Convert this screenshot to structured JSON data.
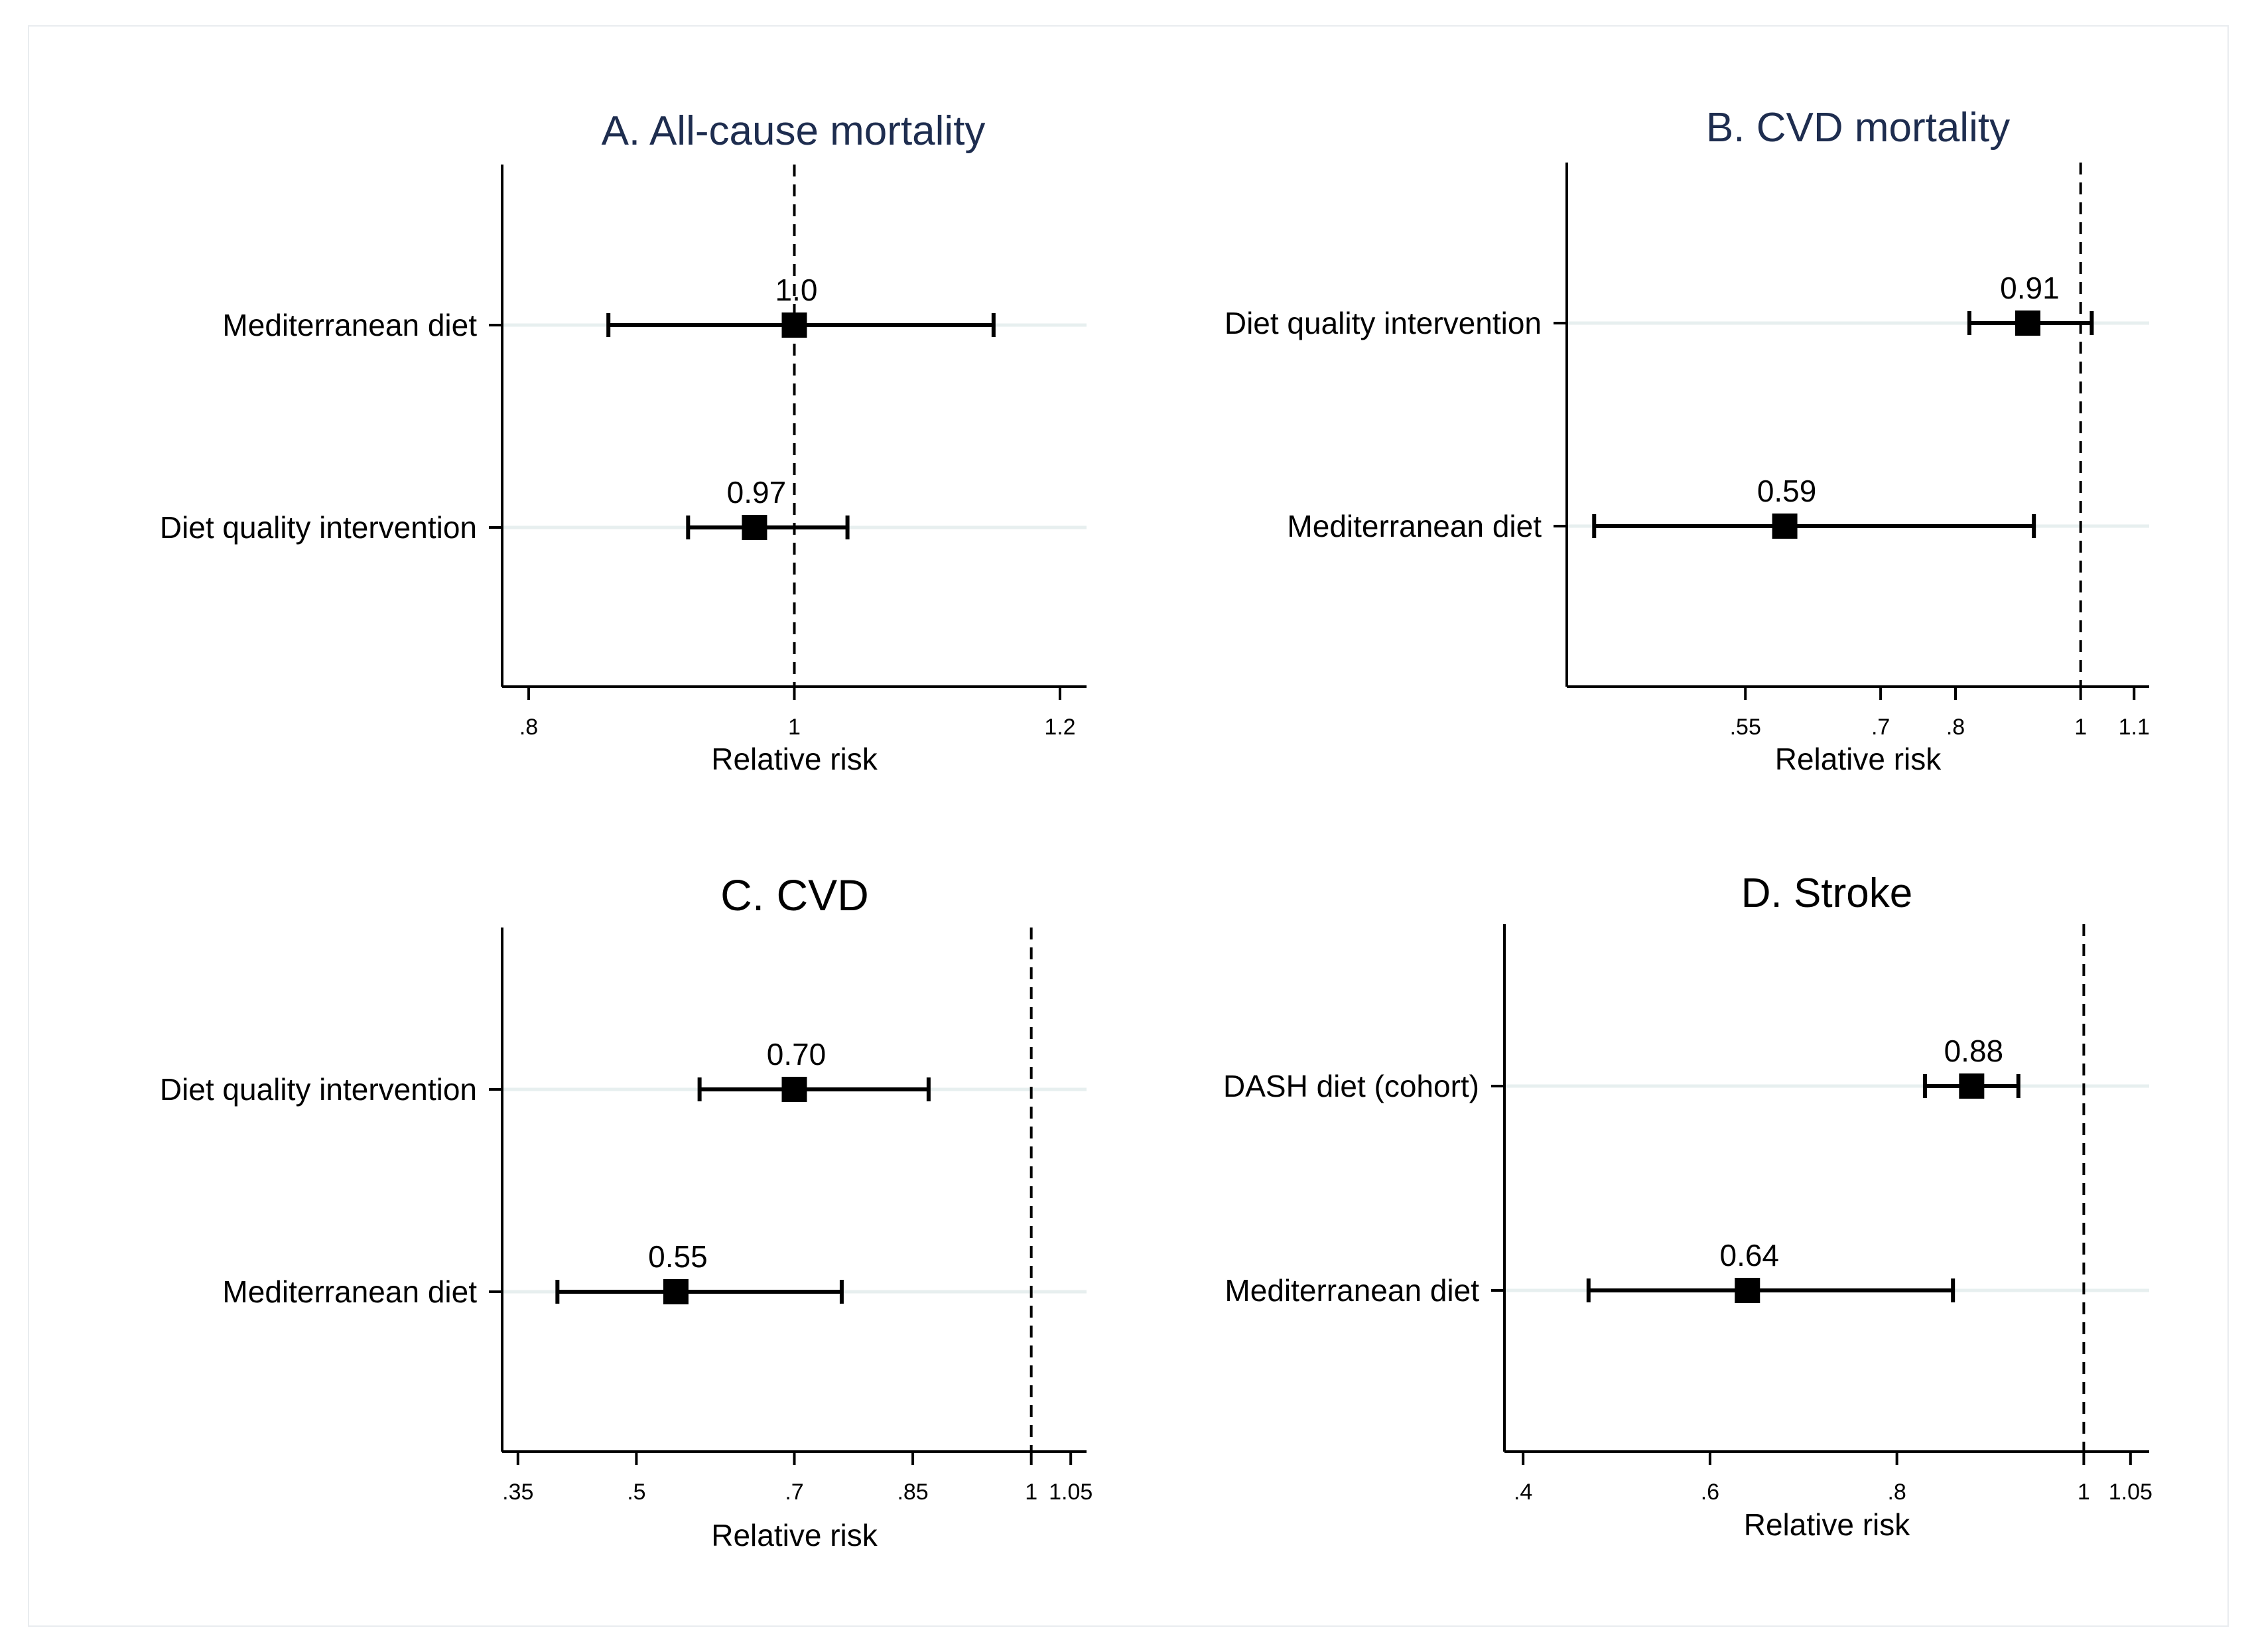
{
  "colors": {
    "title": "#1e2d4f",
    "axis": "#000000",
    "gridline": "#e7efef",
    "marker": "#000000"
  },
  "chart_data": [
    {
      "type": "forest",
      "title": "A. All-cause mortality",
      "xlabel": "Relative risk",
      "xscale": "linear",
      "xlim": [
        0.78,
        1.22
      ],
      "xticks": [
        0.8,
        1,
        1.2
      ],
      "xtick_labels": [
        ".8",
        "1",
        "1.2"
      ],
      "reference": 1,
      "rows": [
        {
          "label": "Mediterranean diet",
          "estimate": 1.0,
          "lower": 0.86,
          "upper": 1.15,
          "value_label": "1.0"
        },
        {
          "label": "Diet quality intervention",
          "estimate": 0.97,
          "lower": 0.92,
          "upper": 1.04,
          "value_label": "0.97"
        }
      ]
    },
    {
      "type": "forest",
      "title": "B. CVD mortality",
      "xlabel": "Relative risk",
      "xscale": "log",
      "xlim": [
        0.4,
        1.13
      ],
      "xticks": [
        0.55,
        0.7,
        0.8,
        1,
        1.1
      ],
      "xtick_labels": [
        ".55",
        ".7",
        ".8",
        "1",
        "1.1"
      ],
      "reference": 1,
      "rows": [
        {
          "label": "Diet quality intervention",
          "estimate": 0.91,
          "lower": 0.82,
          "upper": 1.02,
          "value_label": "0.91"
        },
        {
          "label": "Mediterranean diet",
          "estimate": 0.59,
          "lower": 0.42,
          "upper": 0.92,
          "value_label": "0.59"
        }
      ]
    },
    {
      "type": "forest",
      "title": "C. CVD",
      "xlabel": "Relative risk",
      "xscale": "linear",
      "xlim": [
        0.33,
        1.07
      ],
      "xticks": [
        0.35,
        0.5,
        0.7,
        0.85,
        1,
        1.05
      ],
      "xtick_labels": [
        ".35",
        ".5",
        ".7",
        ".85",
        "1",
        "1.05"
      ],
      "reference": 1,
      "rows": [
        {
          "label": "Diet quality intervention",
          "estimate": 0.7,
          "lower": 0.58,
          "upper": 0.87,
          "value_label": "0.70"
        },
        {
          "label": "Mediterranean diet",
          "estimate": 0.55,
          "lower": 0.4,
          "upper": 0.76,
          "value_label": "0.55"
        }
      ]
    },
    {
      "type": "forest",
      "title": "D. Stroke",
      "xlabel": "Relative risk",
      "xscale": "linear",
      "xlim": [
        0.38,
        1.07
      ],
      "xticks": [
        0.4,
        0.6,
        0.8,
        1,
        1.05
      ],
      "xtick_labels": [
        ".4",
        ".6",
        ".8",
        "1",
        "1.05"
      ],
      "reference": 1,
      "rows": [
        {
          "label": "DASH diet (cohort)",
          "estimate": 0.88,
          "lower": 0.83,
          "upper": 0.93,
          "value_label": "0.88"
        },
        {
          "label": "Mediterranean diet",
          "estimate": 0.64,
          "lower": 0.47,
          "upper": 0.86,
          "value_label": "0.64"
        }
      ]
    }
  ]
}
